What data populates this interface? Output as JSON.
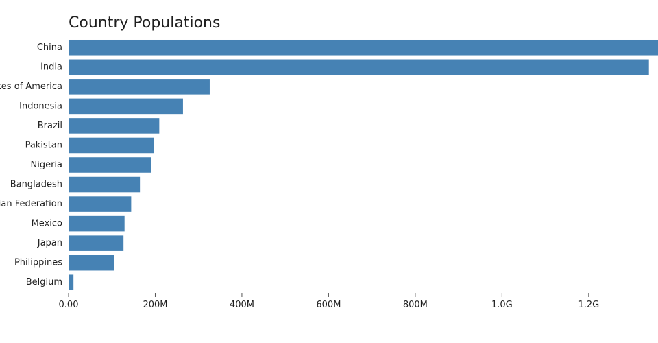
{
  "chart_data": {
    "type": "bar",
    "orientation": "horizontal",
    "title": "Country Populations",
    "xlabel": "",
    "ylabel": "",
    "categories": [
      "China",
      "India",
      "United States of America",
      "Indonesia",
      "Brazil",
      "Pakistan",
      "Nigeria",
      "Bangladesh",
      "Russian Federation",
      "Mexico",
      "Japan",
      "Philippines",
      "Belgium"
    ],
    "values": [
      1386000000,
      1339000000,
      325700000,
      264000000,
      209300000,
      197000000,
      190900000,
      164700000,
      144500000,
      129200000,
      126800000,
      104900000,
      11350000
    ],
    "xlim": [
      0,
      1360000000
    ],
    "x_ticks": [
      0,
      200000000,
      400000000,
      600000000,
      800000000,
      1000000000,
      1200000000
    ],
    "x_tick_labels": [
      "0.00",
      "200M",
      "400M",
      "600M",
      "800M",
      "1.0G",
      "1.2G"
    ],
    "grid": false,
    "legend": "none",
    "bar_color": "#4682b4"
  }
}
